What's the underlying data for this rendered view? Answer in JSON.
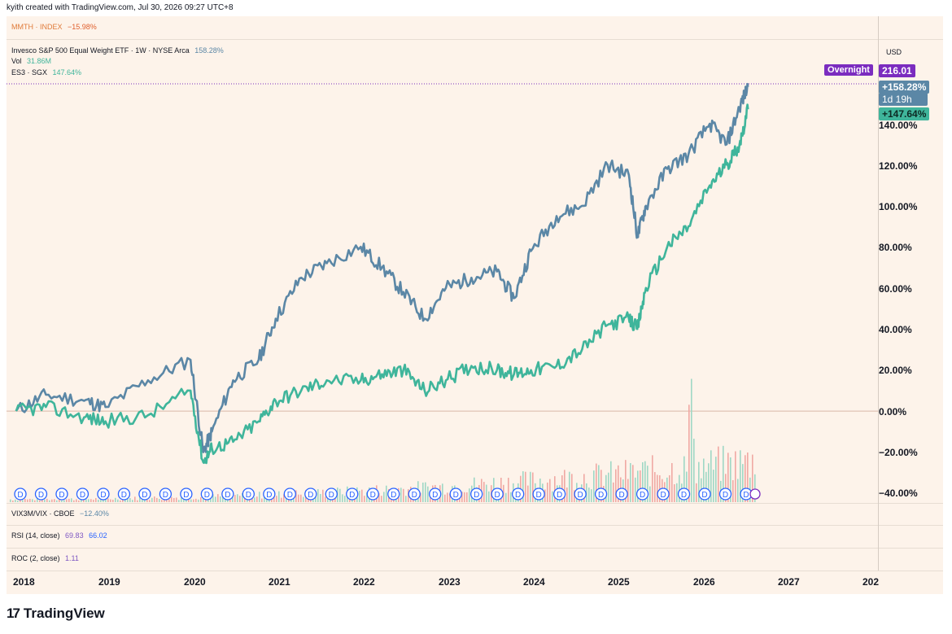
{
  "header": {
    "caption": "kyith created with TradingView.com, Jul 30, 2026 09:27 UTC+8"
  },
  "indicators": {
    "mmth": {
      "name": "MMTH · INDEX",
      "value": "−15.98%"
    },
    "main": {
      "name": "Invesco S&P 500 Equal Weight ETF · 1W · NYSE Arca",
      "value": "158.28%"
    },
    "vol": {
      "name": "Vol",
      "value": "31.86M"
    },
    "es3": {
      "name": "ES3 · SGX",
      "value": "147.64%"
    },
    "vix": {
      "name": "VIX3M/VIX · CBOE",
      "value": "−12.40%"
    },
    "rsi": {
      "name": "RSI (14, close)",
      "value1": "69.83",
      "value2": "66.02"
    },
    "roc": {
      "name": "ROC (2, close)",
      "value": "1.11"
    }
  },
  "scale": {
    "currency": "USD",
    "overnight_label": "Overnight",
    "overnight_price": "216.01",
    "rsp_tag": "+158.28%",
    "countdown": "1d 19h",
    "es3_tag": "+147.64%"
  },
  "branding": {
    "logo_text": "TradingView"
  },
  "colors": {
    "rsp": "#5b87a6",
    "es3": "#3fb59b",
    "overnight": "#7b2cbf",
    "background": "#fdf3ea",
    "vol_up": "#9fd8c5",
    "vol_down": "#f0a9a3"
  },
  "chart_data": {
    "type": "line",
    "y_unit": "%",
    "ylim": [
      -40,
      160
    ],
    "y_ticks": [
      "140.00%",
      "120.00%",
      "100.00%",
      "80.00%",
      "60.00%",
      "40.00%",
      "20.00%",
      "0.00%",
      "−20.00%",
      "−40.00%"
    ],
    "x_ticks": [
      "2018",
      "2019",
      "2020",
      "2021",
      "2022",
      "2023",
      "2024",
      "2025",
      "2026",
      "2027",
      "202"
    ],
    "dividend_marker": "D",
    "dividend_marker_count": 36,
    "grid": false,
    "x": [
      2017.95,
      2018.3,
      2018.75,
      2019.0,
      2019.5,
      2020.0,
      2020.15,
      2020.25,
      2020.5,
      2020.8,
      2021.0,
      2021.3,
      2021.6,
      2022.0,
      2022.25,
      2022.5,
      2022.75,
      2023.0,
      2023.3,
      2023.6,
      2023.8,
      2024.0,
      2024.3,
      2024.6,
      2024.9,
      2025.15,
      2025.25,
      2025.35,
      2025.6,
      2025.85,
      2026.1,
      2026.3,
      2026.45,
      2026.55
    ],
    "series": [
      {
        "name": "Invesco S&P 500 Equal Weight ETF",
        "values": [
          0,
          8,
          5,
          2,
          15,
          25,
          -20,
          -10,
          15,
          25,
          45,
          65,
          72,
          80,
          70,
          58,
          45,
          60,
          65,
          68,
          55,
          78,
          95,
          100,
          120,
          115,
          85,
          100,
          118,
          125,
          140,
          130,
          148,
          158
        ]
      },
      {
        "name": "ES3 · SGX",
        "values": [
          0,
          2,
          -3,
          -5,
          -2,
          10,
          -25,
          -18,
          -15,
          -5,
          5,
          10,
          15,
          15,
          18,
          20,
          10,
          15,
          22,
          20,
          18,
          20,
          22,
          30,
          42,
          45,
          40,
          60,
          80,
          90,
          110,
          120,
          130,
          147
        ]
      }
    ]
  }
}
